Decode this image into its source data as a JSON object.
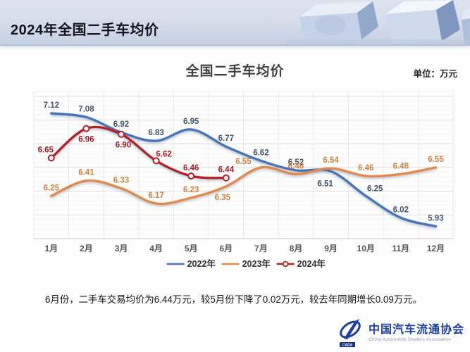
{
  "header": {
    "title": "2024年全国二手车均价"
  },
  "chart": {
    "title": "全国二手车均价",
    "unit_label": "单位：万元"
  },
  "chart_data": {
    "type": "line",
    "title": "全国二手车均价",
    "unit": "万元",
    "categories": [
      "1月",
      "2月",
      "3月",
      "4月",
      "5月",
      "6月",
      "7月",
      "8月",
      "9月",
      "10月",
      "11月",
      "12月"
    ],
    "series": [
      {
        "name": "2022年",
        "color": "#4a74b8",
        "label_color": "#44546a",
        "markers": false,
        "values": [
          7.12,
          7.08,
          6.92,
          6.83,
          6.95,
          6.77,
          6.62,
          6.52,
          6.51,
          6.25,
          6.02,
          5.93
        ],
        "label_offsets": {
          "8": [
            -8,
            21
          ],
          "9": [
            13,
            -7
          ]
        }
      },
      {
        "name": "2023年",
        "color": "#e08a4e",
        "label_color": "#d0803f",
        "markers": false,
        "values": [
          6.25,
          6.41,
          6.33,
          6.17,
          6.23,
          6.35,
          6.55,
          6.48,
          6.54,
          6.46,
          6.48,
          6.55
        ],
        "label_offsets": {
          "5": [
            -5,
            19
          ],
          "6": [
            -25,
            -5
          ]
        }
      },
      {
        "name": "2024年",
        "color": "#b22226",
        "label_color": "#9e1b1f",
        "markers": true,
        "values": [
          6.65,
          6.96,
          6.9,
          6.62,
          6.46,
          6.44
        ],
        "label_offsets": {
          "0": [
            -8,
            -8
          ],
          "1": [
            0,
            19
          ],
          "2": [
            3,
            19
          ],
          "3": [
            11,
            -6
          ]
        }
      }
    ],
    "ylim": [
      5.8,
      7.35
    ],
    "grid": true,
    "legend_position": "bottom",
    "x_axis_label_color": "#555555",
    "legend_labels": [
      "2022年",
      "2023年",
      "2024年"
    ]
  },
  "footer": {
    "note": "6月份，二手车交易均价为6.44万元，较5月份下降了0.02万元，较去年同期增长0.09万元。"
  },
  "logo": {
    "name_zh": "中国汽车流通协会",
    "name_en": "China Automobile Dealers Association",
    "mark_text": "CADA",
    "color": "#1e3f9e"
  }
}
